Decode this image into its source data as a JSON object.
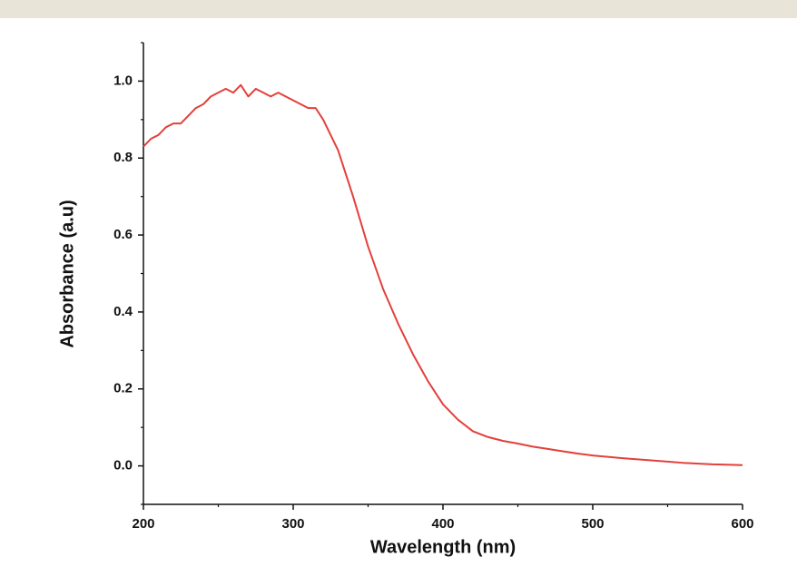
{
  "chart_data": {
    "type": "line",
    "x_label": "Wavelength (nm)",
    "y_label": "Absorbance (a.u)",
    "x": [
      200,
      205,
      210,
      215,
      220,
      225,
      230,
      235,
      240,
      245,
      250,
      255,
      260,
      265,
      270,
      275,
      280,
      285,
      290,
      295,
      300,
      305,
      310,
      315,
      320,
      325,
      330,
      340,
      350,
      360,
      370,
      380,
      390,
      400,
      410,
      420,
      430,
      440,
      450,
      460,
      470,
      480,
      490,
      500,
      520,
      540,
      560,
      580,
      600
    ],
    "series": [
      {
        "name": "Absorbance",
        "color": "#e2403b",
        "values": [
          0.83,
          0.85,
          0.86,
          0.88,
          0.89,
          0.89,
          0.91,
          0.93,
          0.94,
          0.96,
          0.97,
          0.98,
          0.97,
          0.99,
          0.96,
          0.98,
          0.97,
          0.96,
          0.97,
          0.96,
          0.95,
          0.94,
          0.93,
          0.93,
          0.9,
          0.86,
          0.82,
          0.7,
          0.57,
          0.46,
          0.37,
          0.29,
          0.22,
          0.16,
          0.12,
          0.09,
          0.075,
          0.065,
          0.058,
          0.05,
          0.044,
          0.038,
          0.032,
          0.027,
          0.02,
          0.014,
          0.008,
          0.004,
          0.002
        ]
      }
    ],
    "xlim": [
      200,
      600
    ],
    "ylim": [
      -0.1,
      1.1
    ],
    "xticks": [
      200,
      300,
      400,
      500,
      600
    ],
    "yticks": [
      {
        "value": 0,
        "label": "0.0"
      },
      0.2,
      0.4,
      0.6,
      0.8,
      {
        "value": 1,
        "label": "1.0"
      }
    ],
    "xminorticks": [
      250,
      350,
      450,
      550
    ],
    "yminorticks": [
      -0.1,
      0.1,
      0.3,
      0.5,
      0.7,
      0.9,
      1.1
    ],
    "grid": false
  }
}
